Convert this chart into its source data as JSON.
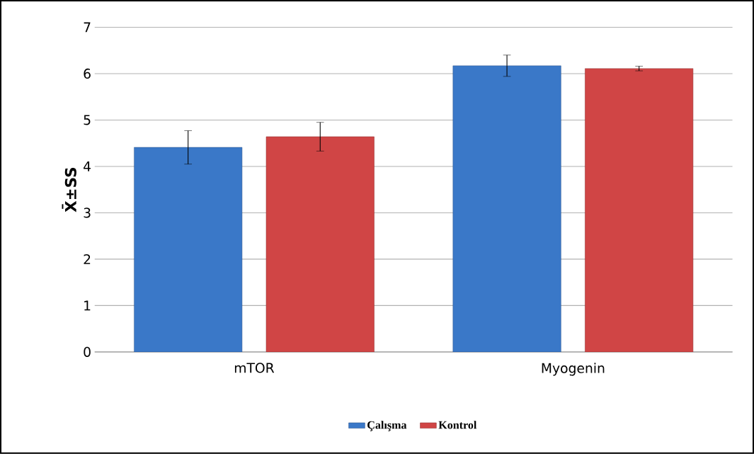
{
  "chart_data": {
    "type": "bar",
    "ylabel": "X̄±SS",
    "categories": [
      "mTOR",
      "Myogenin"
    ],
    "series": [
      {
        "name": "Çalışma",
        "color": "#3a78c8",
        "values": [
          4.41,
          6.17
        ],
        "errors": [
          0.36,
          0.23
        ]
      },
      {
        "name": "Kontrol",
        "color": "#d04545",
        "values": [
          4.64,
          6.11
        ],
        "errors": [
          0.31,
          0.05
        ]
      }
    ],
    "ylim": [
      0,
      7
    ],
    "yticks": [
      0,
      1,
      2,
      3,
      4,
      5,
      6,
      7
    ],
    "grid": "y",
    "legend": "bottom"
  }
}
